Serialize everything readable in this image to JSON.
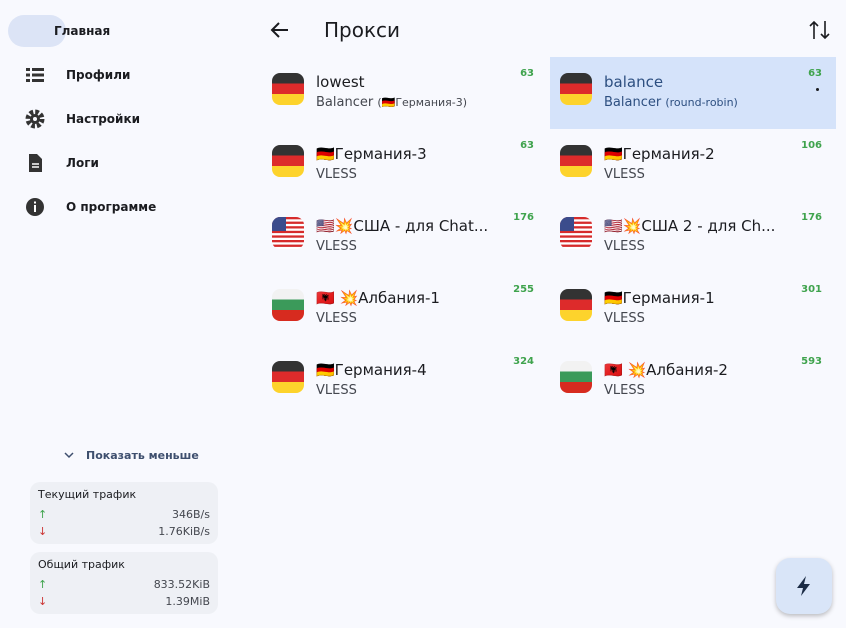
{
  "sidebar": {
    "nav": [
      "Главная",
      "Профили",
      "Настройки",
      "Логи",
      "О программе"
    ],
    "show_less": "Показать меньше",
    "current_traffic": {
      "title": "Текущий трафик",
      "up": "346B/s",
      "down": "1.76KiB/s"
    },
    "total_traffic": {
      "title": "Общий трафик",
      "up": "833.52KiB",
      "down": "1.39MiB"
    }
  },
  "header": {
    "title": "Прокси"
  },
  "proxies": [
    {
      "name": "lowest",
      "type": "Balancer",
      "detail": "(🇩🇪Германия-3)",
      "delay": 63,
      "flag": "de"
    },
    {
      "name": "balance",
      "type": "Balancer",
      "detail": "(round-robin)",
      "delay": 63,
      "flag": "de",
      "selected": true
    },
    {
      "name": "🇩🇪Германия-3",
      "type": "VLESS",
      "delay": 63,
      "flag": "de"
    },
    {
      "name": "🇩🇪Германия-2",
      "type": "VLESS",
      "delay": 106,
      "flag": "de"
    },
    {
      "name": "🇺🇸💥США - для Chat...",
      "type": "VLESS",
      "delay": 176,
      "flag": "us"
    },
    {
      "name": "🇺🇸💥США 2 - для Ch...",
      "type": "VLESS",
      "delay": 176,
      "flag": "us"
    },
    {
      "name": "🇦🇱 💥Албания-1",
      "type": "VLESS",
      "delay": 255,
      "flag": "bg"
    },
    {
      "name": "🇩🇪Германия-1",
      "type": "VLESS",
      "delay": 301,
      "flag": "de"
    },
    {
      "name": "🇩🇪Германия-4",
      "type": "VLESS",
      "delay": 324,
      "flag": "de"
    },
    {
      "name": "🇦🇱 💥Албания-2",
      "type": "VLESS",
      "delay": 593,
      "flag": "bg"
    }
  ]
}
